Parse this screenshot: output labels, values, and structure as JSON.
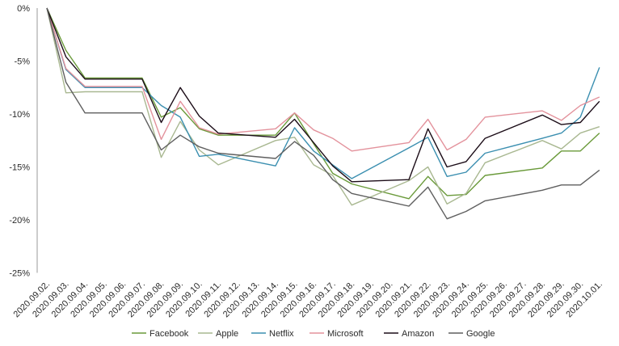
{
  "chart_data": {
    "type": "line",
    "x": [
      "2020.09.02.",
      "2020.09.03.",
      "2020.09.04.",
      "2020.09.05.",
      "2020.09.06.",
      "2020.09.07.",
      "2020.09.08.",
      "2020.09.09.",
      "2020.09.10.",
      "2020.09.11.",
      "2020.09.12.",
      "2020.09.13.",
      "2020.09.14.",
      "2020.09.15.",
      "2020.09.16.",
      "2020.09.17.",
      "2020.09.18.",
      "2020.09.19.",
      "2020.09.20.",
      "2020.09.21.",
      "2020.09.22.",
      "2020.09.23.",
      "2020.09.24.",
      "2020.09.25.",
      "2020.09.26.",
      "2020.09.27.",
      "2020.09.28.",
      "2020.09.29.",
      "2020.09.30.",
      "2020.10.01."
    ],
    "y_ticks": [
      "0%",
      "-5%",
      "-10%",
      "-15%",
      "-20%",
      "-25%"
    ],
    "ylim": [
      -25,
      0
    ],
    "grid": false,
    "legend_position": "bottom",
    "series": [
      {
        "name": "Facebook",
        "color": "#6a9a3a",
        "points": [
          [
            0,
            0
          ],
          [
            1,
            -4.0
          ],
          [
            2,
            -6.6
          ],
          [
            5,
            -6.6
          ],
          [
            6,
            -10.3
          ],
          [
            7,
            -9.4
          ],
          [
            8,
            -11.4
          ],
          [
            9,
            -12.0
          ],
          [
            12,
            -12.0
          ],
          [
            13,
            -9.9
          ],
          [
            14,
            -12.8
          ],
          [
            15,
            -15.6
          ],
          [
            16,
            -16.6
          ],
          [
            19,
            -18.0
          ],
          [
            20,
            -15.9
          ],
          [
            21,
            -17.7
          ],
          [
            22,
            -17.6
          ],
          [
            23,
            -15.8
          ],
          [
            26,
            -15.1
          ],
          [
            27,
            -13.5
          ],
          [
            28,
            -13.5
          ],
          [
            29,
            -11.8
          ]
        ]
      },
      {
        "name": "Apple",
        "color": "#a9b891",
        "points": [
          [
            0,
            0
          ],
          [
            1,
            -8.0
          ],
          [
            2,
            -7.9
          ],
          [
            5,
            -7.9
          ],
          [
            6,
            -14.1
          ],
          [
            7,
            -10.7
          ],
          [
            8,
            -13.4
          ],
          [
            9,
            -14.8
          ],
          [
            12,
            -12.5
          ],
          [
            13,
            -12.2
          ],
          [
            14,
            -14.8
          ],
          [
            15,
            -15.8
          ],
          [
            16,
            -18.6
          ],
          [
            19,
            -16.3
          ],
          [
            20,
            -15.0
          ],
          [
            21,
            -18.5
          ],
          [
            22,
            -17.5
          ],
          [
            23,
            -14.6
          ],
          [
            26,
            -12.5
          ],
          [
            27,
            -13.3
          ],
          [
            28,
            -11.8
          ],
          [
            29,
            -11.2
          ]
        ]
      },
      {
        "name": "Netflix",
        "color": "#3b8fb0",
        "points": [
          [
            0,
            0
          ],
          [
            1,
            -5.8
          ],
          [
            2,
            -7.5
          ],
          [
            5,
            -7.5
          ],
          [
            6,
            -9.2
          ],
          [
            7,
            -10.3
          ],
          [
            8,
            -14.0
          ],
          [
            9,
            -13.8
          ],
          [
            12,
            -14.9
          ],
          [
            13,
            -11.3
          ],
          [
            14,
            -13.5
          ],
          [
            15,
            -14.8
          ],
          [
            16,
            -16.1
          ],
          [
            19,
            -13.2
          ],
          [
            20,
            -12.2
          ],
          [
            21,
            -15.9
          ],
          [
            22,
            -15.5
          ],
          [
            23,
            -13.7
          ],
          [
            26,
            -12.3
          ],
          [
            27,
            -11.8
          ],
          [
            28,
            -10.3
          ],
          [
            29,
            -5.6
          ]
        ]
      },
      {
        "name": "Microsoft",
        "color": "#e3929c",
        "points": [
          [
            0,
            0
          ],
          [
            1,
            -5.7
          ],
          [
            2,
            -7.4
          ],
          [
            5,
            -7.4
          ],
          [
            6,
            -12.4
          ],
          [
            7,
            -8.8
          ],
          [
            8,
            -11.3
          ],
          [
            9,
            -11.9
          ],
          [
            12,
            -11.4
          ],
          [
            13,
            -9.9
          ],
          [
            14,
            -11.5
          ],
          [
            15,
            -12.3
          ],
          [
            16,
            -13.5
          ],
          [
            19,
            -12.7
          ],
          [
            20,
            -10.5
          ],
          [
            21,
            -13.4
          ],
          [
            22,
            -12.4
          ],
          [
            23,
            -10.3
          ],
          [
            26,
            -9.7
          ],
          [
            27,
            -10.6
          ],
          [
            28,
            -9.2
          ],
          [
            29,
            -8.4
          ]
        ]
      },
      {
        "name": "Amazon",
        "color": "#1c0d18",
        "points": [
          [
            0,
            0
          ],
          [
            1,
            -4.6
          ],
          [
            2,
            -6.7
          ],
          [
            5,
            -6.7
          ],
          [
            6,
            -10.8
          ],
          [
            7,
            -7.5
          ],
          [
            8,
            -10.2
          ],
          [
            9,
            -11.8
          ],
          [
            12,
            -12.2
          ],
          [
            13,
            -10.5
          ],
          [
            14,
            -12.7
          ],
          [
            15,
            -14.9
          ],
          [
            16,
            -16.4
          ],
          [
            19,
            -16.2
          ],
          [
            20,
            -11.4
          ],
          [
            21,
            -15.0
          ],
          [
            22,
            -14.5
          ],
          [
            23,
            -12.3
          ],
          [
            26,
            -10.1
          ],
          [
            27,
            -11.0
          ],
          [
            28,
            -10.8
          ],
          [
            29,
            -8.8
          ]
        ]
      },
      {
        "name": "Google",
        "color": "#5f5f5f",
        "points": [
          [
            0,
            0
          ],
          [
            1,
            -7.0
          ],
          [
            2,
            -9.9
          ],
          [
            5,
            -9.9
          ],
          [
            6,
            -13.4
          ],
          [
            7,
            -12.0
          ],
          [
            8,
            -13.1
          ],
          [
            9,
            -13.7
          ],
          [
            12,
            -14.2
          ],
          [
            13,
            -12.6
          ],
          [
            14,
            -13.9
          ],
          [
            15,
            -16.2
          ],
          [
            16,
            -17.5
          ],
          [
            19,
            -18.7
          ],
          [
            20,
            -16.9
          ],
          [
            21,
            -19.9
          ],
          [
            22,
            -19.2
          ],
          [
            23,
            -18.2
          ],
          [
            26,
            -17.2
          ],
          [
            27,
            -16.7
          ],
          [
            28,
            -16.7
          ],
          [
            29,
            -15.3
          ]
        ]
      }
    ]
  }
}
